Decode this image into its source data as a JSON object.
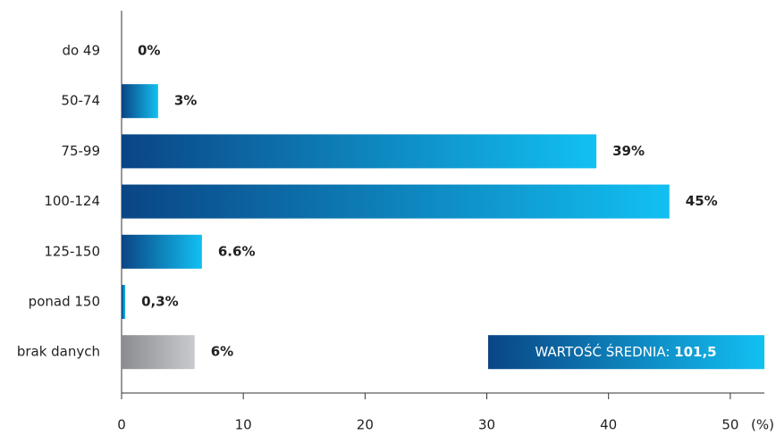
{
  "chart_data": {
    "type": "barh",
    "categories": [
      "do 49",
      "50-74",
      "75-99",
      "100-124",
      "125-150",
      "ponad 150",
      "brak danych"
    ],
    "values": [
      0,
      3,
      39,
      45,
      6.6,
      0.3,
      6
    ],
    "value_labels": [
      "0%",
      "3%",
      "39%",
      "45%",
      "6.6%",
      "0,3%",
      "6%"
    ],
    "gradients": {
      "blue": [
        "#0a4585",
        "#12c0f2"
      ],
      "gray": [
        "#8a8c90",
        "#c8cacd"
      ]
    },
    "bar_gradient": [
      "blue",
      "blue",
      "blue",
      "blue",
      "blue",
      "blue",
      "gray"
    ],
    "xlim": [
      0,
      52.8
    ],
    "xticks": [
      0,
      10,
      20,
      30,
      40,
      50
    ],
    "x_unit": "(%)",
    "annotation": {
      "text": "WARTOŚĆ ŚREDNIA:",
      "value": "101,5",
      "gradient": "blue"
    }
  }
}
